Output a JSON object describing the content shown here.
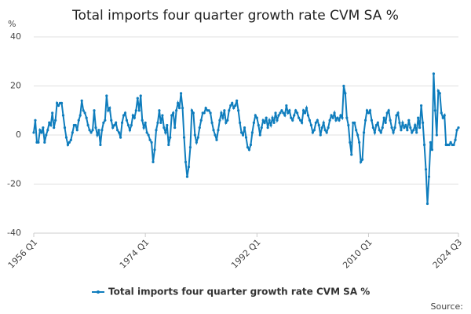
{
  "chart_data": {
    "type": "line",
    "title": "Total imports four quarter growth rate CVM SA %",
    "y_label": "%",
    "source": "Source:",
    "categories": [
      "1956 Q1",
      null,
      null,
      null,
      null,
      null,
      null,
      null,
      null,
      null,
      null,
      null,
      null,
      null,
      null,
      null,
      null,
      null,
      null,
      null,
      null,
      null,
      null,
      null,
      null,
      null,
      null,
      null,
      null,
      null,
      null,
      null,
      null,
      null,
      null,
      null,
      null,
      null,
      null,
      null,
      null,
      null,
      null,
      null,
      null,
      null,
      null,
      null,
      null,
      null,
      null,
      null,
      null,
      null,
      null,
      null,
      null,
      null,
      null,
      null,
      null,
      null,
      null,
      null,
      null,
      null,
      null,
      null,
      null,
      null,
      null,
      null,
      "1974 Q1",
      null,
      null,
      null,
      null,
      null,
      null,
      null,
      null,
      null,
      null,
      null,
      null,
      null,
      null,
      null,
      null,
      null,
      null,
      null,
      null,
      null,
      null,
      null,
      null,
      null,
      null,
      null,
      null,
      null,
      null,
      null,
      null,
      null,
      null,
      null,
      null,
      null,
      null,
      null,
      null,
      null,
      null,
      null,
      null,
      null,
      null,
      null,
      null,
      null,
      null,
      null,
      null,
      null,
      null,
      null,
      null,
      null,
      null,
      null,
      null,
      null,
      null,
      null,
      null,
      null,
      null,
      null,
      null,
      null,
      null,
      null,
      "1992 Q1",
      null,
      null,
      null,
      null,
      null,
      null,
      null,
      null,
      null,
      null,
      null,
      null,
      null,
      null,
      null,
      null,
      null,
      null,
      null,
      null,
      null,
      null,
      null,
      null,
      null,
      null,
      null,
      null,
      null,
      null,
      null,
      null,
      null,
      null,
      null,
      null,
      null,
      null,
      null,
      null,
      null,
      null,
      null,
      null,
      null,
      null,
      null,
      null,
      null,
      null,
      null,
      null,
      null,
      null,
      null,
      null,
      null,
      null,
      null,
      null,
      null,
      null,
      null,
      null,
      null,
      null,
      null,
      null,
      null,
      null,
      null,
      "2010 Q1",
      null,
      null,
      null,
      null,
      null,
      null,
      null,
      null,
      null,
      null,
      null,
      null,
      null,
      null,
      null,
      null,
      null,
      null,
      null,
      null,
      null,
      null,
      null,
      null,
      null,
      null,
      null,
      null,
      null,
      null,
      null,
      null,
      null,
      null,
      null,
      null,
      null,
      null,
      null,
      null,
      null,
      null,
      null,
      null,
      null,
      null,
      null,
      null,
      null,
      null,
      null,
      null,
      null,
      null,
      null,
      null,
      null,
      "2024 Q3"
    ],
    "series": [
      {
        "name": "Total imports four quarter growth rate CVM SA %",
        "color": "#0f7dbd",
        "values": [
          1,
          6,
          -3,
          -3,
          2,
          1,
          3,
          -3,
          0,
          2,
          5,
          4,
          9,
          3,
          6,
          13,
          12,
          13,
          13,
          8,
          3,
          -1,
          -4,
          -3,
          -2,
          1,
          4,
          4,
          2,
          6,
          8,
          14,
          10,
          9,
          7,
          4,
          2,
          1,
          2,
          10,
          3,
          0,
          2,
          -4,
          2,
          5,
          6,
          16,
          10,
          11,
          6,
          3,
          4,
          5,
          2,
          1,
          -1,
          5,
          8,
          9,
          6,
          4,
          2,
          4,
          8,
          7,
          10,
          15,
          10,
          16,
          6,
          3,
          5,
          1,
          0,
          -2,
          -3,
          -11,
          -6,
          2,
          5,
          10,
          5,
          8,
          3,
          1,
          4,
          -4,
          -1,
          8,
          9,
          3,
          10,
          13,
          11,
          17,
          11,
          -1,
          -11,
          -17,
          -13,
          -5,
          10,
          9,
          0,
          -3,
          -1,
          3,
          6,
          9,
          9,
          11,
          10,
          10,
          9,
          5,
          2,
          0,
          -2,
          2,
          6,
          9,
          7,
          10,
          5,
          6,
          10,
          12,
          13,
          11,
          12,
          14,
          10,
          5,
          1,
          0,
          3,
          -1,
          -5,
          -6,
          -4,
          1,
          5,
          8,
          7,
          4,
          0,
          3,
          6,
          5,
          7,
          3,
          6,
          4,
          7,
          5,
          9,
          6,
          8,
          9,
          10,
          9,
          8,
          12,
          9,
          10,
          7,
          6,
          8,
          10,
          9,
          7,
          6,
          5,
          10,
          9,
          11,
          8,
          6,
          4,
          1,
          2,
          5,
          6,
          4,
          0,
          3,
          5,
          2,
          1,
          3,
          6,
          8,
          7,
          9,
          6,
          7,
          6,
          8,
          7,
          20,
          17,
          7,
          4,
          -3,
          -8,
          5,
          5,
          2,
          0,
          -3,
          -11,
          -10,
          1,
          6,
          10,
          9,
          10,
          6,
          3,
          1,
          4,
          5,
          2,
          1,
          3,
          7,
          5,
          9,
          10,
          6,
          3,
          1,
          3,
          8,
          9,
          5,
          2,
          5,
          3,
          4,
          2,
          6,
          3,
          1,
          2,
          4,
          1,
          7,
          3,
          12,
          5,
          -4,
          -14,
          -28,
          -17,
          -3,
          -6,
          25,
          10,
          0,
          18,
          17,
          9,
          7,
          8,
          -4,
          -4,
          -4,
          -3,
          -4,
          -4,
          -2,
          2,
          3
        ]
      }
    ],
    "ylim": [
      -40,
      40
    ],
    "yticks": [
      -40,
      -20,
      0,
      20,
      40
    ],
    "grid": true,
    "legend": "bottom"
  }
}
